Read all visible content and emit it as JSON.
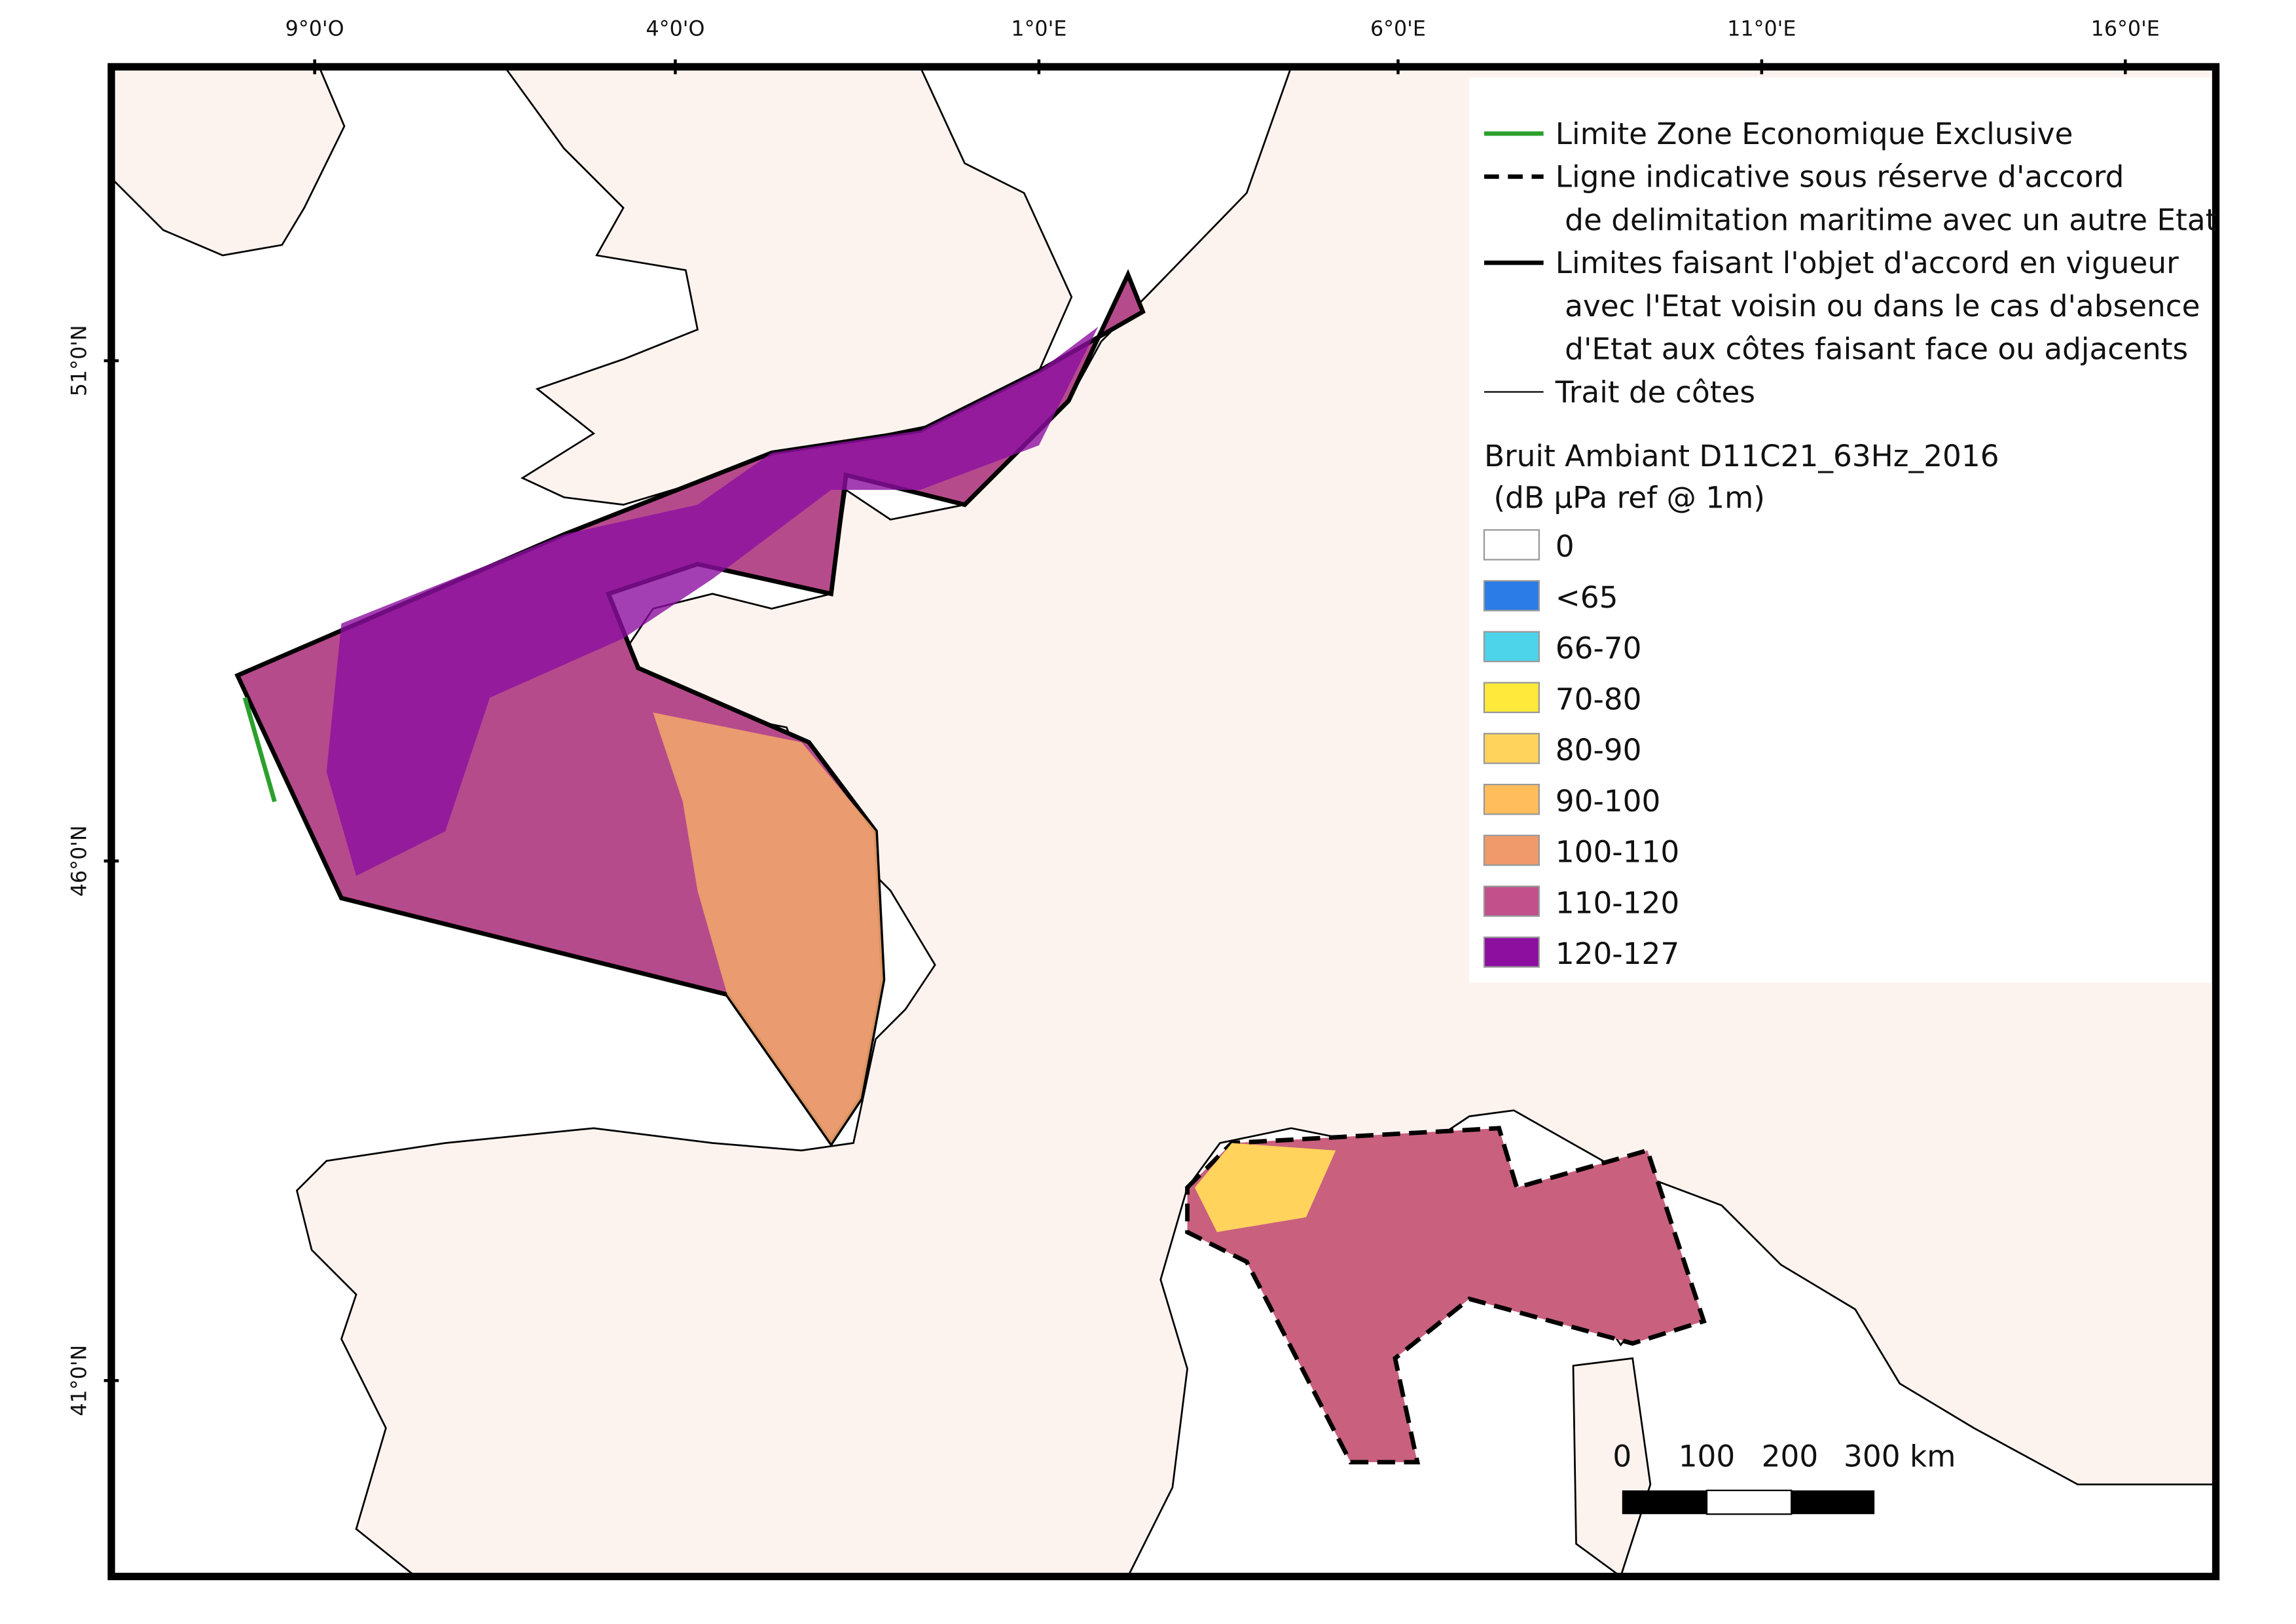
{
  "map": {
    "lon_labels": [
      "9°0'O",
      "4°0'O",
      "1°0'E",
      "6°0'E",
      "11°0'E",
      "16°0'E"
    ],
    "lat_labels": [
      "51°0'N",
      "46°0'N",
      "41°0'N"
    ],
    "legend": {
      "lines": [
        {
          "lines": [
            "Limite Zone Economique Exclusive"
          ],
          "color": "#2ca02c",
          "style": "solid",
          "width": 3
        },
        {
          "lines": [
            "Ligne indicative sous réserve d'accord",
            " de delimitation maritime avec un autre Etat"
          ],
          "color": "#000000",
          "style": "dashed",
          "width": 3
        },
        {
          "lines": [
            "Limites faisant l'objet d'accord en vigueur",
            " avec l'Etat voisin ou dans le cas d'absence",
            " d'Etat aux côtes faisant face ou adjacents"
          ],
          "color": "#000000",
          "style": "solid",
          "width": 3
        },
        {
          "lines": [
            "Trait de côtes"
          ],
          "color": "#000000",
          "style": "solid",
          "width": 1
        }
      ],
      "title": [
        "Bruit Ambiant D11C21_63Hz_2016",
        " (dB µPa ref @ 1m)"
      ],
      "classes": [
        {
          "label": "0",
          "color": "#ffffff"
        },
        {
          "label": "<65",
          "color": "#2b7ce6"
        },
        {
          "label": "66-70",
          "color": "#4dd4ea"
        },
        {
          "label": "70-80",
          "color": "#ffe93b"
        },
        {
          "label": "80-90",
          "color": "#ffd35c"
        },
        {
          "label": "90-100",
          "color": "#ffbd5c"
        },
        {
          "label": "100-110",
          "color": "#f09a6c"
        },
        {
          "label": "110-120",
          "color": "#c2508a"
        },
        {
          "label": "120-127",
          "color": "#8c0fa0"
        }
      ]
    },
    "scale_bar": [
      "0",
      "100",
      "200",
      "300 km"
    ]
  }
}
